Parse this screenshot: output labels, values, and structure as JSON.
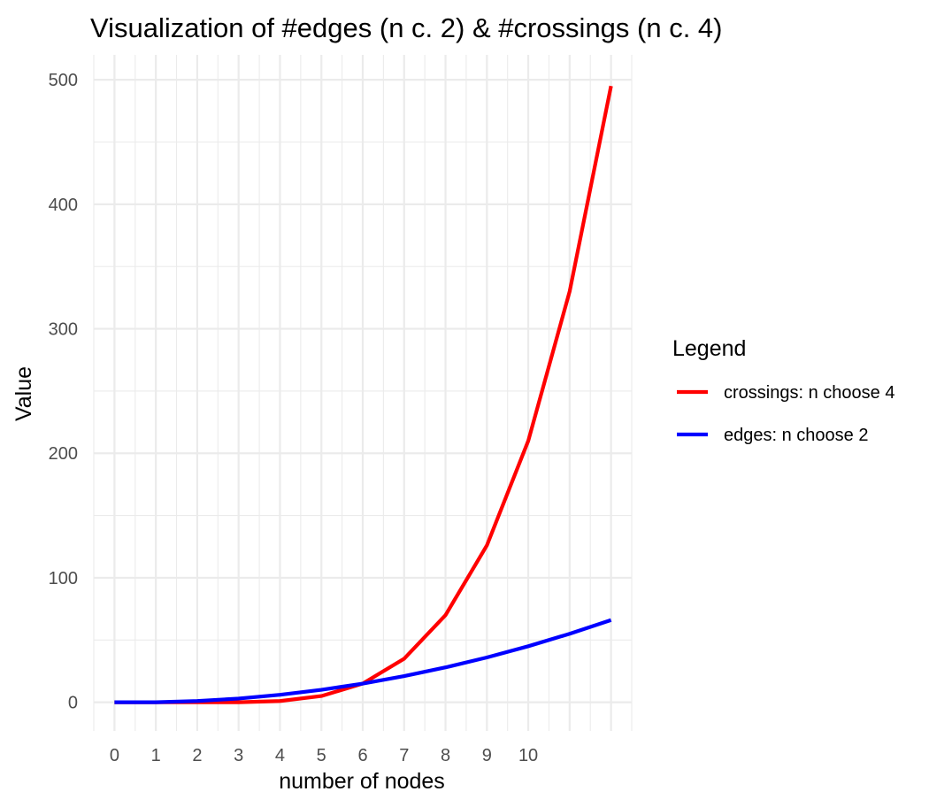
{
  "chart_data": {
    "type": "line",
    "title": "Visualization of #edges (n c. 2) & #crossings (n c. 4)",
    "xlabel": "number of nodes",
    "ylabel": "Value",
    "xlim": [
      -0.5,
      12.5
    ],
    "ylim": [
      -23,
      520
    ],
    "x_ticks": [
      0,
      1,
      2,
      3,
      4,
      5,
      6,
      7,
      8,
      9,
      10
    ],
    "y_ticks": [
      0,
      100,
      200,
      300,
      400,
      500
    ],
    "grid": true,
    "legend": {
      "title": "Legend",
      "position": "right"
    },
    "series": [
      {
        "name": "crossings: n choose 4",
        "color": "#ff0000",
        "x": [
          0,
          1,
          2,
          3,
          4,
          5,
          6,
          7,
          8,
          9,
          10,
          11,
          12
        ],
        "values": [
          0,
          0,
          0,
          0,
          1,
          5,
          15,
          35,
          70,
          126,
          210,
          330,
          495
        ]
      },
      {
        "name": "edges: n choose 2",
        "color": "#0000ff",
        "x": [
          0,
          1,
          2,
          3,
          4,
          5,
          6,
          7,
          8,
          9,
          10,
          11,
          12
        ],
        "values": [
          0,
          0,
          1,
          3,
          6,
          10,
          15,
          21,
          28,
          36,
          45,
          55,
          66
        ]
      }
    ]
  }
}
